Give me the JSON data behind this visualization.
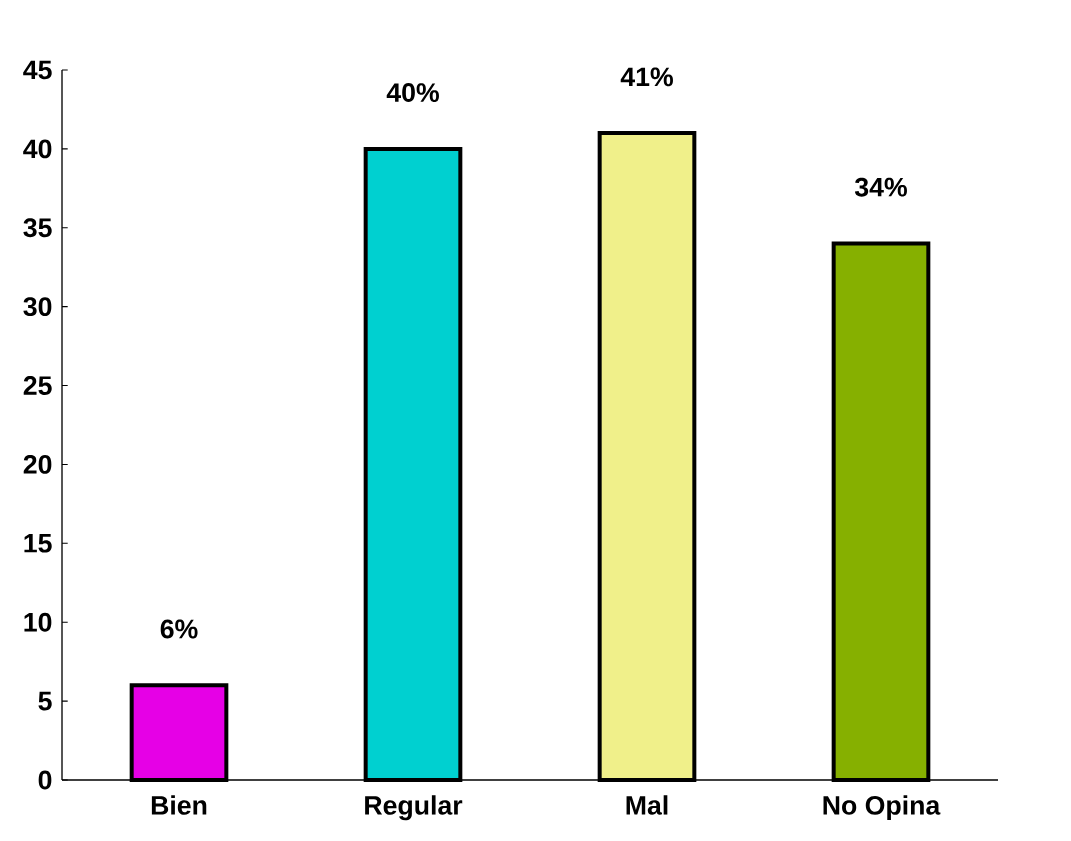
{
  "chart_data": {
    "type": "bar",
    "categories": [
      "Bien",
      "Regular",
      "Mal",
      "No Opina"
    ],
    "values": [
      6,
      40,
      41,
      34
    ],
    "value_labels": [
      "6%",
      "40%",
      "41%",
      "34%"
    ],
    "colors": [
      "#e600e6",
      "#00d0d0",
      "#f0f08a",
      "#86b000"
    ],
    "ylim": [
      0,
      45
    ],
    "yticks": [
      0,
      5,
      10,
      15,
      20,
      25,
      30,
      35,
      40,
      45
    ]
  }
}
